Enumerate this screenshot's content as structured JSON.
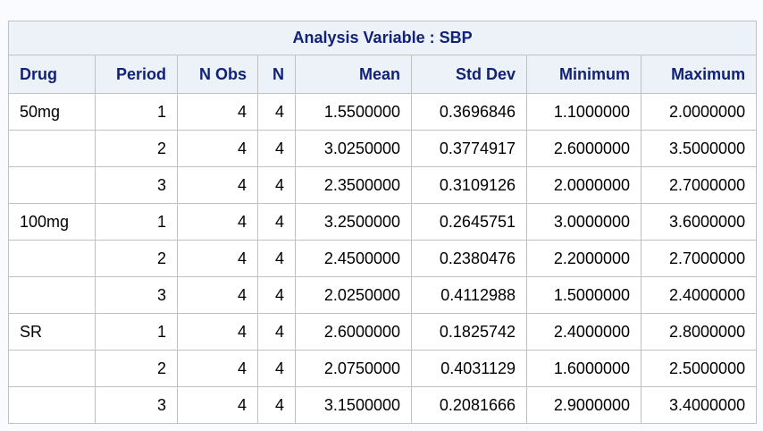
{
  "table": {
    "title": "Analysis Variable : SBP",
    "columns": [
      "Drug",
      "Period",
      "N Obs",
      "N",
      "Mean",
      "Std Dev",
      "Minimum",
      "Maximum"
    ],
    "groups": [
      {
        "drug": "50mg",
        "rows": [
          [
            "1",
            "4",
            "4",
            "1.5500000",
            "0.3696846",
            "1.1000000",
            "2.0000000"
          ],
          [
            "2",
            "4",
            "4",
            "3.0250000",
            "0.3774917",
            "2.6000000",
            "3.5000000"
          ],
          [
            "3",
            "4",
            "4",
            "2.3500000",
            "0.3109126",
            "2.0000000",
            "2.7000000"
          ]
        ]
      },
      {
        "drug": "100mg",
        "rows": [
          [
            "1",
            "4",
            "4",
            "3.2500000",
            "0.2645751",
            "3.0000000",
            "3.6000000"
          ],
          [
            "2",
            "4",
            "4",
            "2.4500000",
            "0.2380476",
            "2.2000000",
            "2.7000000"
          ],
          [
            "3",
            "4",
            "4",
            "2.0250000",
            "0.4112988",
            "1.5000000",
            "2.4000000"
          ]
        ]
      },
      {
        "drug": "SR",
        "rows": [
          [
            "1",
            "4",
            "4",
            "2.6000000",
            "0.1825742",
            "2.4000000",
            "2.8000000"
          ],
          [
            "2",
            "4",
            "4",
            "2.0750000",
            "0.4031129",
            "1.6000000",
            "2.5000000"
          ],
          [
            "3",
            "4",
            "4",
            "3.1500000",
            "0.2081666",
            "2.9000000",
            "3.4000000"
          ]
        ]
      }
    ]
  }
}
